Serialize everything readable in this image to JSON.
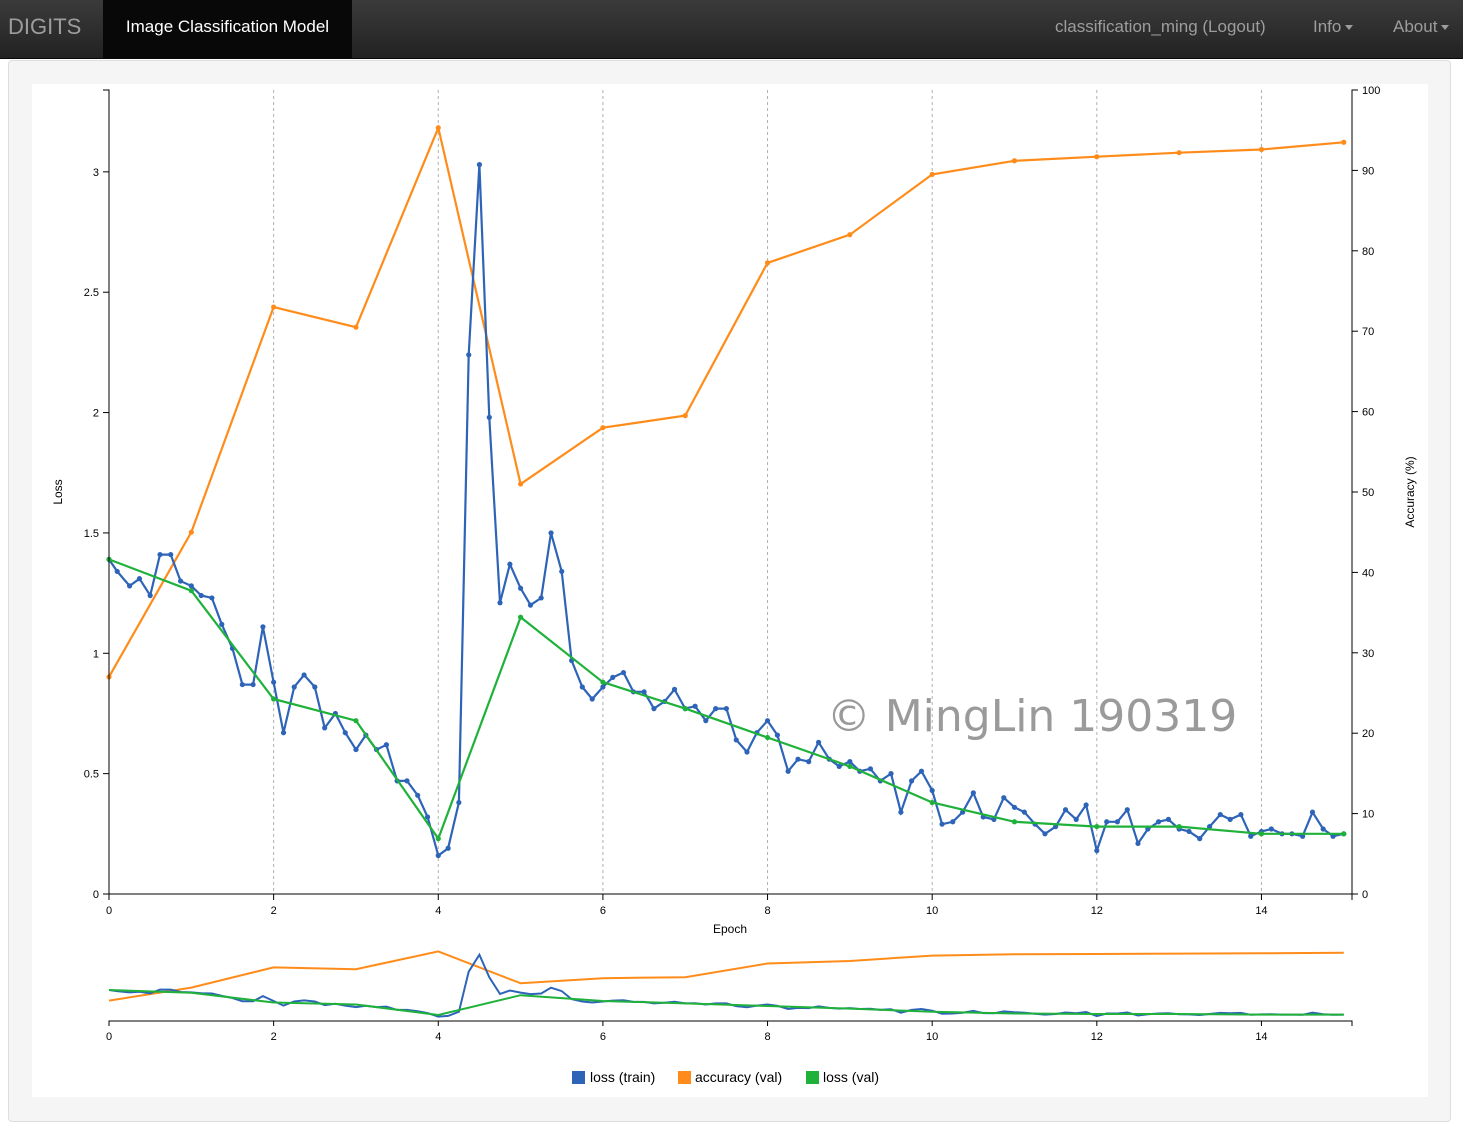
{
  "navbar": {
    "brand": "DIGITS",
    "active_tab": "Image Classification Model",
    "user": "classification_ming (Logout)",
    "info": "Info",
    "about": "About"
  },
  "watermark": "© MingLin 190319",
  "colors": {
    "loss_train": "#2e64b8",
    "accuracy_val": "#ff8c1a",
    "loss_val": "#1fb13a",
    "grid": "#b0b0b0"
  },
  "chart_data": {
    "type": "line",
    "xlabel": "Epoch",
    "ylabel_left": "Loss",
    "ylabel_right": "Accuracy (%)",
    "xlim": [
      0,
      15.1
    ],
    "ylim_left": [
      0,
      3.34
    ],
    "ylim_right": [
      0,
      100
    ],
    "x_ticks": [
      0,
      2,
      4,
      6,
      8,
      10,
      12,
      14
    ],
    "y_ticks_left": [
      0,
      0.5,
      1,
      1.5,
      2,
      2.5,
      3
    ],
    "y_ticks_left_labels": [
      "0",
      "0.5",
      "1",
      "1.5",
      "2",
      "2.5",
      "3"
    ],
    "y_ticks_right": [
      0,
      10,
      20,
      30,
      40,
      50,
      60,
      70,
      80,
      90,
      100
    ],
    "grid_x": true,
    "legend_position": "bottom",
    "series": [
      {
        "name": "loss (train)",
        "axis": "left",
        "x": [
          0,
          0.1,
          0.25,
          0.37,
          0.5,
          0.62,
          0.75,
          0.87,
          1,
          1.12,
          1.25,
          1.37,
          1.5,
          1.62,
          1.75,
          1.87,
          2,
          2.12,
          2.25,
          2.37,
          2.5,
          2.62,
          2.75,
          2.87,
          3,
          3.12,
          3.25,
          3.37,
          3.5,
          3.62,
          3.75,
          3.87,
          4,
          4.12,
          4.25,
          4.37,
          4.5,
          4.62,
          4.75,
          4.87,
          5,
          5.12,
          5.25,
          5.37,
          5.5,
          5.62,
          5.75,
          5.87,
          6,
          6.12,
          6.25,
          6.37,
          6.5,
          6.62,
          6.75,
          6.87,
          7,
          7.12,
          7.25,
          7.37,
          7.5,
          7.62,
          7.75,
          7.87,
          8,
          8.12,
          8.25,
          8.37,
          8.5,
          8.62,
          8.75,
          8.87,
          9,
          9.12,
          9.25,
          9.37,
          9.5,
          9.62,
          9.75,
          9.87,
          10,
          10.12,
          10.25,
          10.37,
          10.5,
          10.62,
          10.75,
          10.87,
          11,
          11.12,
          11.25,
          11.37,
          11.5,
          11.62,
          11.75,
          11.87,
          12,
          12.12,
          12.25,
          12.37,
          12.5,
          12.62,
          12.75,
          12.87,
          13,
          13.12,
          13.25,
          13.37,
          13.5,
          13.62,
          13.75,
          13.87,
          14,
          14.12,
          14.25,
          14.37,
          14.5,
          14.62,
          14.75,
          14.87,
          15
        ],
        "y": [
          1.39,
          1.34,
          1.28,
          1.31,
          1.24,
          1.41,
          1.41,
          1.3,
          1.28,
          1.24,
          1.23,
          1.12,
          1.02,
          0.87,
          0.87,
          1.11,
          0.88,
          0.67,
          0.86,
          0.91,
          0.86,
          0.69,
          0.75,
          0.67,
          0.6,
          0.66,
          0.6,
          0.62,
          0.47,
          0.47,
          0.41,
          0.32,
          0.16,
          0.19,
          0.38,
          2.24,
          3.03,
          1.98,
          1.21,
          1.37,
          1.27,
          1.2,
          1.23,
          1.5,
          1.34,
          0.97,
          0.86,
          0.81,
          0.86,
          0.9,
          0.92,
          0.84,
          0.84,
          0.77,
          0.8,
          0.85,
          0.77,
          0.78,
          0.72,
          0.77,
          0.77,
          0.64,
          0.59,
          0.67,
          0.72,
          0.66,
          0.51,
          0.56,
          0.55,
          0.63,
          0.56,
          0.53,
          0.55,
          0.51,
          0.52,
          0.47,
          0.5,
          0.34,
          0.47,
          0.51,
          0.43,
          0.29,
          0.3,
          0.34,
          0.42,
          0.32,
          0.31,
          0.4,
          0.36,
          0.34,
          0.29,
          0.25,
          0.28,
          0.35,
          0.31,
          0.37,
          0.18,
          0.3,
          0.3,
          0.35,
          0.21,
          0.27,
          0.3,
          0.31,
          0.27,
          0.26,
          0.23,
          0.28,
          0.33,
          0.31,
          0.33,
          0.24,
          0.26,
          0.27,
          0.25,
          0.25,
          0.24,
          0.34,
          0.27,
          0.24,
          0.25
        ]
      },
      {
        "name": "accuracy (val)",
        "axis": "right",
        "x": [
          0,
          1,
          2,
          3,
          4,
          5,
          6,
          7,
          8,
          9,
          10,
          11,
          12,
          13,
          14,
          15
        ],
        "y": [
          27,
          45,
          73,
          70.5,
          95.3,
          51,
          58,
          59.5,
          78.5,
          82,
          89.5,
          91.2,
          91.7,
          92.2,
          92.6,
          93.5
        ]
      },
      {
        "name": "loss (val)",
        "axis": "left",
        "x": [
          0,
          1,
          2,
          3,
          4,
          5,
          6,
          7,
          8,
          9,
          10,
          11,
          12,
          13,
          14,
          15
        ],
        "y": [
          1.39,
          1.26,
          0.81,
          0.72,
          0.23,
          1.15,
          0.88,
          0.77,
          0.65,
          0.53,
          0.38,
          0.3,
          0.28,
          0.28,
          0.25,
          0.25
        ]
      }
    ]
  }
}
